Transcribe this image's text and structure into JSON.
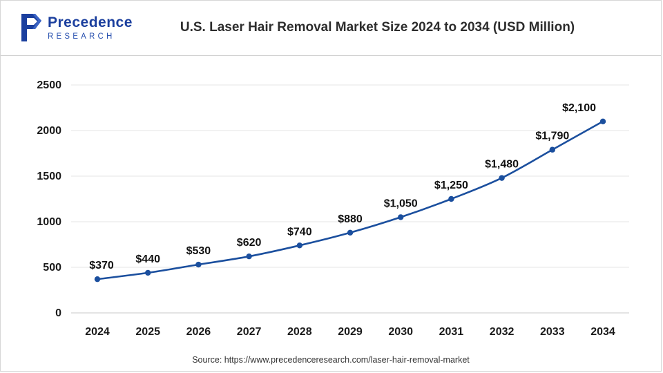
{
  "header": {
    "logo": {
      "name": "Precedence Research logo",
      "line1": "Precedence",
      "line2": "RESEARCH"
    },
    "title": "U.S. Laser Hair Removal Market Size 2024 to 2034 (USD Million)"
  },
  "footer": {
    "source": "Source: https://www.precedenceresearch.com/laser-hair-removal-market"
  },
  "colors": {
    "line": "#1b4f9e",
    "marker": "#1b4f9e",
    "value_label": "#111111",
    "tick_label": "#1a1a1a",
    "grid": "#e4e4e4",
    "axis": "#c9c9c9",
    "logo_blue": "#1b3f9e",
    "title_text": "#2d2d2d"
  },
  "chart_data": {
    "type": "line",
    "title": "U.S. Laser Hair Removal Market Size 2024 to 2034 (USD Million)",
    "categories": [
      "2024",
      "2025",
      "2026",
      "2027",
      "2028",
      "2029",
      "2030",
      "2031",
      "2032",
      "2033",
      "2034"
    ],
    "values": [
      370,
      440,
      530,
      620,
      740,
      880,
      1050,
      1250,
      1480,
      1790,
      2100
    ],
    "value_labels": [
      "$370",
      "$440",
      "$530",
      "$620",
      "$740",
      "$880",
      "$1,050",
      "$1,250",
      "$1,480",
      "$1,790",
      "$2,100"
    ],
    "xlabel": "",
    "ylabel": "",
    "ylim": [
      0,
      2500
    ],
    "yticks": [
      0,
      500,
      1000,
      1500,
      2000,
      2500
    ],
    "grid": true,
    "legend": "none",
    "series_name": "U.S. Laser Hair Removal Market Size (USD Million)"
  }
}
